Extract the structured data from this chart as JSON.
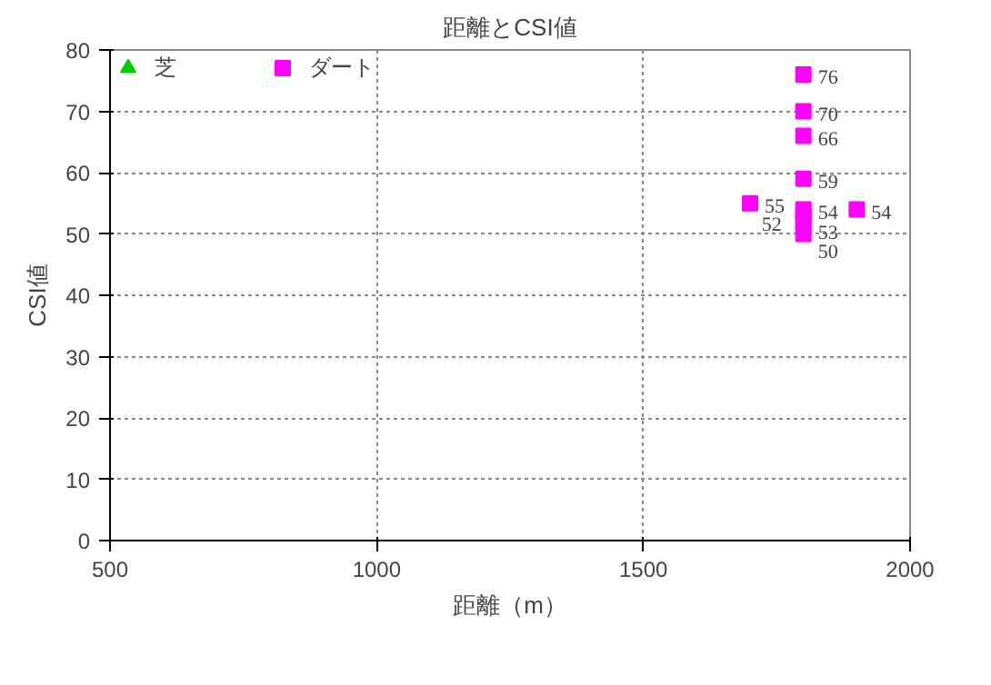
{
  "chart_data": {
    "type": "scatter",
    "title": "距離とCSI値",
    "xlabel": "距離（m）",
    "ylabel": "CSI値",
    "series": [
      {
        "name": "芝",
        "color": "#00cc00",
        "marker": "triangle"
      },
      {
        "name": "ダート",
        "color": "#ff00ff",
        "marker": "square",
        "x": [
          1800,
          1800,
          1800,
          1800,
          1700,
          1800,
          1800,
          1800,
          1800,
          1900
        ],
        "values": [
          76,
          70,
          66,
          59,
          55,
          54,
          53,
          52,
          50,
          54
        ]
      }
    ],
    "xlim": [
      500,
      2000
    ],
    "xticks": [
      500,
      1000,
      1500,
      2000
    ],
    "ylim": [
      0,
      80
    ],
    "yticks": [
      0,
      10,
      20,
      30,
      40,
      50,
      60,
      70,
      80
    ],
    "grid": true,
    "legend": "top left",
    "data_labels": true
  }
}
